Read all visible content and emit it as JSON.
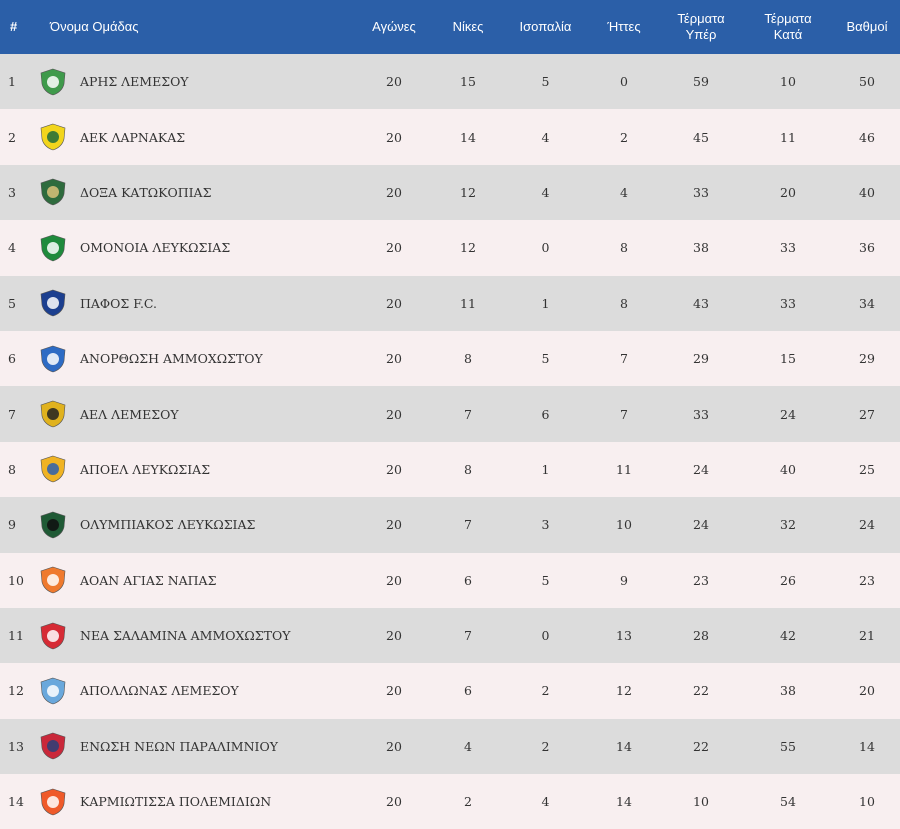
{
  "headers": {
    "pos": "#",
    "name": "Όνομα Ομάδας",
    "played": "Αγώνες",
    "wins": "Νίκες",
    "draws": "Ισοπαλία",
    "losses": "Ήττες",
    "gf_line1": "Τέρματα",
    "gf_line2": "Υπέρ",
    "ga_line1": "Τέρματα",
    "ga_line2": "Κατά",
    "points": "Βαθμοί"
  },
  "rows": [
    {
      "pos": "1",
      "name": "ΑΡΗΣ ΛΕΜΕΣΟΥ",
      "played": "20",
      "wins": "15",
      "draws": "5",
      "losses": "0",
      "gf": "59",
      "ga": "10",
      "points": "50",
      "logo": "aris-limassol-logo",
      "color": "#3f9a4b",
      "color2": "#ffffff"
    },
    {
      "pos": "2",
      "name": "ΑΕΚ ΛΑΡΝΑΚΑΣ",
      "played": "20",
      "wins": "14",
      "draws": "4",
      "losses": "2",
      "gf": "45",
      "ga": "11",
      "points": "46",
      "logo": "aek-larnaca-logo",
      "color": "#f2d51c",
      "color2": "#1f6b3a"
    },
    {
      "pos": "3",
      "name": "ΔΟΞΑ ΚΑΤΩΚΟΠΙΑΣ",
      "played": "20",
      "wins": "12",
      "draws": "4",
      "losses": "4",
      "gf": "33",
      "ga": "20",
      "points": "40",
      "logo": "doxa-katokopias-logo",
      "color": "#2e6b3d",
      "color2": "#d9c27a"
    },
    {
      "pos": "4",
      "name": "ΟΜΟΝΟΙΑ ΛΕΥΚΩΣΙΑΣ",
      "played": "20",
      "wins": "12",
      "draws": "0",
      "losses": "8",
      "gf": "38",
      "ga": "33",
      "points": "36",
      "logo": "omonia-nicosia-logo",
      "color": "#1f8a3c",
      "color2": "#ffffff"
    },
    {
      "pos": "5",
      "name": "ΠΑΦΟΣ F.C.",
      "played": "20",
      "wins": "11",
      "draws": "1",
      "losses": "8",
      "gf": "43",
      "ga": "33",
      "points": "34",
      "logo": "pafos-fc-logo",
      "color": "#1c3f8f",
      "color2": "#ffffff"
    },
    {
      "pos": "6",
      "name": "ΑΝΟΡΘΩΣΗ ΑΜΜΟΧΩΣΤΟΥ",
      "played": "20",
      "wins": "8",
      "draws": "5",
      "losses": "7",
      "gf": "29",
      "ga": "15",
      "points": "29",
      "logo": "anorthosis-logo",
      "color": "#2d6bc4",
      "color2": "#ffffff"
    },
    {
      "pos": "7",
      "name": "ΑΕΛ ΛΕΜΕΣΟΥ",
      "played": "20",
      "wins": "7",
      "draws": "6",
      "losses": "7",
      "gf": "33",
      "ga": "24",
      "points": "27",
      "logo": "ael-limassol-logo",
      "color": "#e0b21e",
      "color2": "#222222"
    },
    {
      "pos": "8",
      "name": "ΑΠΟΕΛ ΛΕΥΚΩΣΙΑΣ",
      "played": "20",
      "wins": "8",
      "draws": "1",
      "losses": "11",
      "gf": "24",
      "ga": "40",
      "points": "25",
      "logo": "apoel-logo",
      "color": "#f0b323",
      "color2": "#2b5fb0"
    },
    {
      "pos": "9",
      "name": "ΟΛΥΜΠΙΑΚΟΣ ΛΕΥΚΩΣΙΑΣ",
      "played": "20",
      "wins": "7",
      "draws": "3",
      "losses": "10",
      "gf": "24",
      "ga": "32",
      "points": "24",
      "logo": "olympiakos-nicosia-logo",
      "color": "#1f5a35",
      "color2": "#0f0f0f"
    },
    {
      "pos": "10",
      "name": "ΑΟΑΝ ΑΓΙΑΣ ΝΑΠΑΣ",
      "played": "20",
      "wins": "6",
      "draws": "5",
      "losses": "9",
      "gf": "23",
      "ga": "26",
      "points": "23",
      "logo": "aoan-ayia-napa-logo",
      "color": "#ef7a2e",
      "color2": "#ffffff"
    },
    {
      "pos": "11",
      "name": "ΝΕΑ ΣΑΛΑΜΙΝΑ ΑΜΜΟΧΩΣΤΟΥ",
      "played": "20",
      "wins": "7",
      "draws": "0",
      "losses": "13",
      "gf": "28",
      "ga": "42",
      "points": "21",
      "logo": "nea-salamina-logo",
      "color": "#d62b35",
      "color2": "#ffffff"
    },
    {
      "pos": "12",
      "name": "ΑΠΟΛΛΩΝΑΣ ΛΕΜΕΣΟΥ",
      "played": "20",
      "wins": "6",
      "draws": "2",
      "losses": "12",
      "gf": "22",
      "ga": "38",
      "points": "20",
      "logo": "apollon-limassol-logo",
      "color": "#6aa8dc",
      "color2": "#ffffff"
    },
    {
      "pos": "13",
      "name": "ΕΝΩΣΗ ΝΕΩΝ ΠΑΡΑΛΙΜΝΙΟΥ",
      "played": "20",
      "wins": "4",
      "draws": "2",
      "losses": "14",
      "gf": "22",
      "ga": "55",
      "points": "14",
      "logo": "enp-paralimni-logo",
      "color": "#c9283a",
      "color2": "#2a3f7a"
    },
    {
      "pos": "14",
      "name": "ΚΑΡΜΙΩΤΙΣΣΑ ΠΟΛΕΜΙΔΙΩΝ",
      "played": "20",
      "wins": "2",
      "draws": "4",
      "losses": "14",
      "gf": "10",
      "ga": "54",
      "points": "10",
      "logo": "karmiotissa-logo",
      "color": "#ef5a2a",
      "color2": "#ffffff"
    }
  ]
}
